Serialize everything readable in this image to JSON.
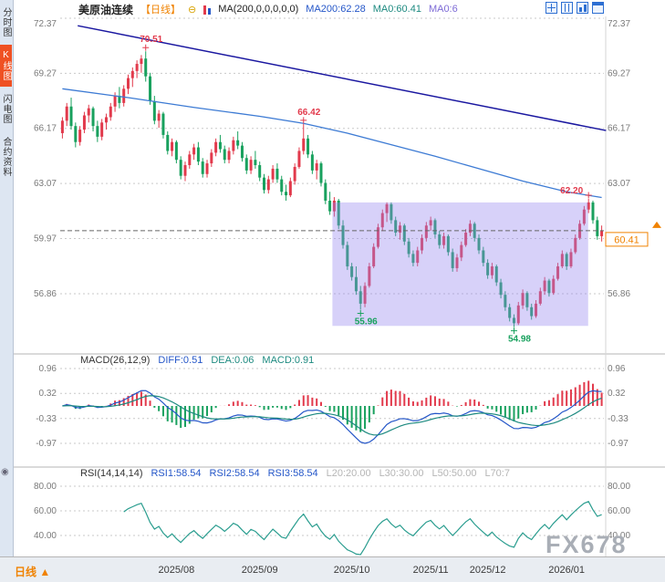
{
  "app": {
    "watermark": "FX678"
  },
  "sidebar": {
    "items": [
      {
        "key": "time-chart",
        "label": "分时图",
        "active": false
      },
      {
        "key": "kline-chart",
        "label": "K线图",
        "active": true
      },
      {
        "key": "flash-chart",
        "label": "闪电图",
        "active": false
      },
      {
        "key": "contract-info",
        "label": "合约资料",
        "active": false
      }
    ]
  },
  "header": {
    "symbol": "美原油连续",
    "period_tag": "【日线】",
    "circle_icon": "⊖",
    "ma_formula": "MA(200,0,0,0,0,0)",
    "ma200": "MA200:62.28",
    "ma0": "MA0:60.41",
    "ma0b": "MA0:6"
  },
  "macd_header": {
    "title": "MACD(26,12,9)",
    "diff": "DIFF:0.51",
    "dea": "DEA:0.06",
    "macd": "MACD:0.91"
  },
  "rsi_header": {
    "title": "RSI(14,14,14)",
    "rsi1": "RSI1:58.54",
    "rsi2": "RSI2:58.54",
    "rsi3": "RSI3:58.54",
    "l20": "L20:20.00",
    "l30": "L30:30.00",
    "l50": "L50:50.00",
    "l70": "L70:7"
  },
  "bottom": {
    "period_label": "日线",
    "arrow": "▲"
  },
  "colors": {
    "up": "#e23a4c",
    "down": "#19a15e",
    "accent_orange": "#f08200",
    "ma_line": "#3d7bd4",
    "trendline": "#1a17a0",
    "selection": "rgba(151,135,238,0.38)",
    "diff_line": "#2456c8",
    "dea_line": "#1d8a80",
    "rsi_line": "#2a9d8f",
    "axis_text": "#7a7a7a"
  },
  "chart_data": {
    "type": "candlestick",
    "symbol": "美原油连续",
    "period": "日线",
    "x_ticks": [
      {
        "label": "2025/08",
        "i": 26
      },
      {
        "label": "2025/09",
        "i": 45
      },
      {
        "label": "2025/10",
        "i": 66
      },
      {
        "label": "2025/11",
        "i": 84
      },
      {
        "label": "2025/12",
        "i": 97
      },
      {
        "label": "2026/01",
        "i": 115
      }
    ],
    "price": {
      "axis": [
        72.37,
        69.27,
        66.17,
        63.07,
        59.97,
        56.86
      ],
      "current_price": 60.41,
      "annotations": [
        {
          "text": "70.51",
          "i": 19,
          "price": 70.51,
          "type": "high"
        },
        {
          "text": "66.42",
          "i": 55,
          "price": 66.42,
          "type": "high"
        },
        {
          "text": "62.20",
          "i": 120,
          "price": 62.2,
          "type": "high"
        },
        {
          "text": "55.96",
          "i": 68,
          "price": 55.96,
          "type": "low"
        },
        {
          "text": "54.98",
          "i": 103,
          "price": 54.98,
          "type": "low"
        }
      ],
      "trendline": {
        "i1": 3.5,
        "price1": 71.95,
        "i2": 124,
        "price2": 66.05
      },
      "selection_box": {
        "i1": 62,
        "i2": 119.5,
        "price_top": 62.0,
        "price_bottom": 55.05
      },
      "ma200_points": [
        [
          0,
          68.4
        ],
        [
          15,
          67.9
        ],
        [
          30,
          67.35
        ],
        [
          45,
          66.85
        ],
        [
          55,
          66.45
        ],
        [
          65,
          65.9
        ],
        [
          75,
          65.25
        ],
        [
          85,
          64.6
        ],
        [
          95,
          63.9
        ],
        [
          105,
          63.2
        ],
        [
          115,
          62.6
        ],
        [
          123,
          62.28
        ]
      ],
      "candles": [
        [
          65.9,
          66.8,
          65.6,
          66.6
        ],
        [
          66.6,
          67.6,
          66.3,
          67.4
        ],
        [
          67.4,
          67.9,
          66.1,
          66.3
        ],
        [
          66.3,
          66.5,
          65.1,
          65.4
        ],
        [
          65.4,
          66.3,
          65.2,
          66.1
        ],
        [
          66.1,
          67.1,
          65.9,
          66.9
        ],
        [
          66.9,
          67.5,
          66.5,
          67.3
        ],
        [
          67.3,
          67.4,
          66.0,
          66.3
        ],
        [
          66.3,
          66.6,
          65.4,
          65.7
        ],
        [
          65.7,
          66.7,
          65.5,
          66.5
        ],
        [
          66.5,
          67.0,
          66.1,
          66.8
        ],
        [
          66.8,
          67.6,
          66.6,
          67.4
        ],
        [
          67.4,
          68.2,
          67.1,
          68.0
        ],
        [
          68.0,
          68.5,
          67.3,
          67.6
        ],
        [
          67.6,
          68.6,
          67.4,
          68.4
        ],
        [
          68.4,
          69.2,
          68.1,
          69.0
        ],
        [
          69.0,
          69.6,
          68.5,
          69.4
        ],
        [
          69.4,
          70.0,
          69.0,
          69.8
        ],
        [
          69.8,
          70.3,
          69.3,
          70.1
        ],
        [
          70.1,
          70.51,
          68.8,
          69.1
        ],
        [
          69.1,
          69.3,
          67.5,
          67.7
        ],
        [
          67.7,
          68.0,
          66.4,
          66.6
        ],
        [
          66.6,
          67.2,
          66.2,
          67.0
        ],
        [
          67.0,
          67.1,
          65.6,
          65.8
        ],
        [
          65.8,
          66.0,
          64.7,
          64.9
        ],
        [
          64.9,
          65.6,
          64.6,
          65.4
        ],
        [
          65.4,
          65.5,
          64.2,
          64.4
        ],
        [
          64.4,
          64.6,
          63.3,
          63.5
        ],
        [
          63.5,
          64.3,
          63.2,
          64.1
        ],
        [
          64.1,
          64.9,
          63.9,
          64.7
        ],
        [
          64.7,
          65.3,
          64.4,
          65.1
        ],
        [
          65.1,
          65.4,
          64.1,
          64.3
        ],
        [
          64.3,
          64.5,
          63.4,
          63.6
        ],
        [
          63.6,
          64.4,
          63.4,
          64.2
        ],
        [
          64.2,
          65.0,
          64.0,
          64.8
        ],
        [
          64.8,
          65.6,
          64.6,
          65.4
        ],
        [
          65.4,
          65.8,
          64.8,
          65.0
        ],
        [
          65.0,
          65.2,
          64.2,
          64.4
        ],
        [
          64.4,
          65.1,
          64.2,
          64.9
        ],
        [
          64.9,
          65.7,
          64.7,
          65.5
        ],
        [
          65.5,
          66.0,
          65.0,
          65.2
        ],
        [
          65.2,
          65.4,
          64.3,
          64.5
        ],
        [
          64.5,
          64.7,
          63.6,
          63.8
        ],
        [
          63.8,
          64.6,
          63.6,
          64.4
        ],
        [
          64.4,
          64.9,
          63.9,
          64.1
        ],
        [
          64.1,
          64.3,
          63.2,
          63.4
        ],
        [
          63.4,
          63.6,
          62.5,
          62.7
        ],
        [
          62.7,
          63.5,
          62.5,
          63.3
        ],
        [
          63.3,
          64.1,
          63.1,
          63.9
        ],
        [
          63.9,
          64.2,
          63.1,
          63.3
        ],
        [
          63.3,
          63.5,
          62.4,
          62.6
        ],
        [
          62.6,
          63.0,
          62.1,
          62.4
        ],
        [
          62.4,
          63.4,
          62.3,
          63.2
        ],
        [
          63.2,
          64.2,
          63.0,
          64.0
        ],
        [
          64.0,
          65.1,
          63.9,
          64.9
        ],
        [
          64.9,
          66.42,
          64.7,
          65.6
        ],
        [
          65.6,
          65.8,
          64.5,
          64.7
        ],
        [
          64.7,
          64.9,
          63.6,
          63.8
        ],
        [
          63.8,
          64.4,
          63.3,
          64.2
        ],
        [
          64.2,
          64.3,
          62.9,
          63.1
        ],
        [
          63.1,
          63.3,
          61.9,
          62.1
        ],
        [
          62.1,
          62.6,
          61.3,
          61.5
        ],
        [
          61.5,
          62.3,
          61.2,
          62.1
        ],
        [
          62.1,
          62.2,
          60.5,
          60.7
        ],
        [
          60.7,
          61.0,
          59.4,
          59.6
        ],
        [
          59.6,
          59.8,
          58.2,
          58.4
        ],
        [
          58.4,
          58.6,
          57.6,
          57.8
        ],
        [
          57.8,
          58.4,
          56.8,
          57.0
        ],
        [
          57.0,
          57.3,
          55.96,
          56.3
        ],
        [
          56.3,
          57.5,
          56.1,
          57.3
        ],
        [
          57.3,
          58.6,
          57.2,
          58.4
        ],
        [
          58.4,
          59.7,
          58.3,
          59.5
        ],
        [
          59.5,
          60.8,
          59.4,
          60.6
        ],
        [
          60.6,
          61.6,
          60.4,
          61.4
        ],
        [
          61.4,
          62.0,
          60.9,
          61.9
        ],
        [
          61.9,
          62.0,
          60.8,
          61.0
        ],
        [
          61.0,
          61.2,
          60.1,
          60.3
        ],
        [
          60.3,
          60.9,
          59.9,
          60.7
        ],
        [
          60.7,
          60.8,
          59.6,
          59.8
        ],
        [
          59.8,
          60.0,
          58.9,
          59.1
        ],
        [
          59.1,
          59.3,
          58.4,
          58.6
        ],
        [
          58.6,
          59.5,
          58.4,
          59.3
        ],
        [
          59.3,
          60.2,
          59.1,
          60.0
        ],
        [
          60.0,
          60.9,
          59.8,
          60.7
        ],
        [
          60.7,
          61.2,
          60.4,
          61.0
        ],
        [
          61.0,
          61.1,
          60.0,
          60.2
        ],
        [
          60.2,
          60.4,
          59.4,
          59.6
        ],
        [
          59.6,
          60.3,
          59.4,
          60.1
        ],
        [
          60.1,
          60.2,
          59.0,
          59.2
        ],
        [
          59.2,
          59.4,
          58.1,
          58.3
        ],
        [
          58.3,
          59.1,
          58.1,
          58.9
        ],
        [
          58.9,
          59.8,
          58.7,
          59.6
        ],
        [
          59.6,
          60.5,
          59.5,
          60.3
        ],
        [
          60.3,
          61.0,
          60.1,
          60.8
        ],
        [
          60.8,
          60.9,
          59.8,
          60.0
        ],
        [
          60.0,
          60.2,
          59.1,
          59.3
        ],
        [
          59.3,
          59.5,
          58.4,
          58.6
        ],
        [
          58.6,
          58.8,
          57.7,
          57.9
        ],
        [
          57.9,
          58.6,
          57.7,
          58.4
        ],
        [
          58.4,
          58.5,
          57.3,
          57.5
        ],
        [
          57.5,
          57.7,
          56.6,
          56.8
        ],
        [
          56.8,
          57.0,
          55.9,
          56.1
        ],
        [
          56.1,
          56.3,
          55.3,
          55.5
        ],
        [
          55.5,
          55.7,
          54.98,
          55.2
        ],
        [
          55.2,
          56.4,
          55.1,
          56.2
        ],
        [
          56.2,
          57.1,
          56.0,
          56.9
        ],
        [
          56.9,
          57.0,
          55.9,
          56.1
        ],
        [
          56.1,
          56.3,
          55.4,
          55.6
        ],
        [
          55.6,
          56.5,
          55.5,
          56.3
        ],
        [
          56.3,
          57.2,
          56.2,
          57.0
        ],
        [
          57.0,
          57.8,
          56.8,
          57.6
        ],
        [
          57.6,
          57.7,
          56.7,
          56.9
        ],
        [
          56.9,
          57.9,
          56.8,
          57.7
        ],
        [
          57.7,
          58.6,
          57.6,
          58.4
        ],
        [
          58.4,
          59.3,
          58.3,
          59.1
        ],
        [
          59.1,
          59.2,
          58.2,
          58.4
        ],
        [
          58.4,
          59.4,
          58.3,
          59.2
        ],
        [
          59.2,
          60.2,
          59.1,
          60.0
        ],
        [
          60.0,
          61.0,
          59.9,
          60.8
        ],
        [
          60.8,
          61.8,
          60.7,
          61.6
        ],
        [
          61.6,
          62.2,
          61.4,
          62.0
        ],
        [
          62.0,
          62.1,
          60.8,
          61.0
        ],
        [
          61.0,
          61.2,
          59.9,
          60.1
        ],
        [
          60.1,
          60.7,
          59.8,
          60.41
        ]
      ]
    },
    "macd": {
      "axis": [
        0.96,
        0.32,
        -0.33,
        -0.97
      ],
      "fast": 12,
      "slow": 26,
      "signal": 9
    },
    "rsi": {
      "axis": [
        80.0,
        60.0,
        40.0
      ],
      "period": 14
    }
  }
}
